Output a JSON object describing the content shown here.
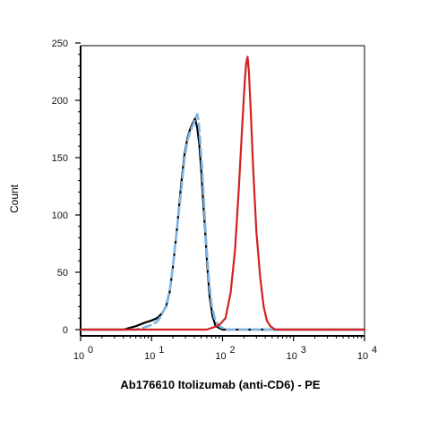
{
  "chart_data": {
    "type": "line",
    "title": "",
    "xlabel": "Ab176610 Itolizumab (anti-CD6) - PE",
    "ylabel": "Count",
    "x_scale": "log",
    "xlim": [
      1,
      10000
    ],
    "ylim": [
      0,
      250
    ],
    "y_ticks": [
      "0",
      "50",
      "100",
      "150",
      "200",
      "250"
    ],
    "x_ticks": [
      {
        "base": "10",
        "exp": "0"
      },
      {
        "base": "10",
        "exp": "1"
      },
      {
        "base": "10",
        "exp": "2"
      },
      {
        "base": "10",
        "exp": "3"
      },
      {
        "base": "10",
        "exp": "4"
      }
    ],
    "grid": false,
    "legend": "none",
    "series": [
      {
        "color": "#000000",
        "style": "solid",
        "x": [
          1,
          4,
          6,
          8,
          10,
          12,
          14,
          16,
          18,
          20,
          23,
          26,
          29,
          32,
          35,
          38,
          41,
          44,
          47,
          50,
          53,
          57,
          61,
          66,
          72,
          80,
          100,
          10000
        ],
        "y": [
          0,
          0,
          3,
          6,
          8,
          10,
          14,
          20,
          33,
          55,
          90,
          125,
          152,
          167,
          175,
          180,
          184,
          176,
          162,
          140,
          115,
          85,
          55,
          28,
          12,
          3,
          0,
          0
        ]
      },
      {
        "color": "#7fb6e6",
        "style": "dashed",
        "x": [
          1,
          6,
          8,
          10,
          12,
          14,
          16,
          18,
          20,
          23,
          26,
          29,
          32,
          35,
          38,
          41,
          44,
          46,
          48,
          51,
          55,
          59,
          64,
          70,
          78,
          90,
          110,
          10000
        ],
        "y": [
          0,
          0,
          2,
          4,
          7,
          13,
          21,
          34,
          56,
          90,
          120,
          148,
          165,
          173,
          178,
          183,
          188,
          182,
          168,
          145,
          110,
          75,
          45,
          22,
          9,
          3,
          0,
          0
        ]
      },
      {
        "color": "#d42020",
        "style": "solid",
        "x": [
          1,
          60,
          75,
          90,
          110,
          130,
          150,
          170,
          190,
          205,
          215,
          225,
          235,
          250,
          270,
          300,
          340,
          380,
          420,
          470,
          550,
          10000
        ],
        "y": [
          0,
          0,
          2,
          4,
          10,
          32,
          70,
          125,
          180,
          215,
          232,
          238,
          225,
          190,
          140,
          85,
          45,
          20,
          8,
          3,
          0,
          0
        ]
      }
    ]
  }
}
